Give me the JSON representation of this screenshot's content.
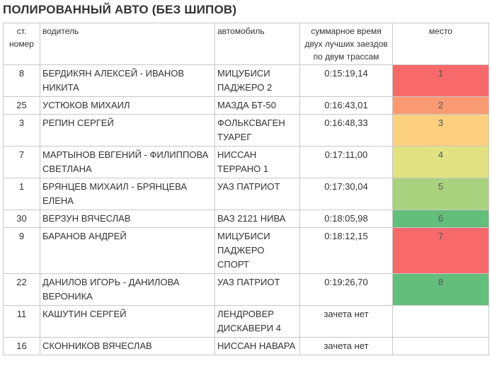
{
  "title": "ПОЛИРОВАННЫЙ АВТО (БЕЗ ШИПОВ)",
  "headers": {
    "number": "ст. номер",
    "driver": "водитель",
    "car": "автомобиль",
    "time": "суммарное время двух лучших заездов по двум трассам",
    "place": "место"
  },
  "rows": [
    {
      "number": "8",
      "driver": "БЕРДИКЯН АЛЕКСЕЙ - ИВАНОВ НИКИТА",
      "car": "МИЦУБИСИ ПАДЖЕРО 2",
      "time": "0:15:19,14",
      "place": "1",
      "color": "#f8696b"
    },
    {
      "number": "25",
      "driver": "УСТЮКОВ МИХАИЛ",
      "car": "МАЗДА БТ-50",
      "time": "0:16:43,01",
      "place": "2",
      "color": "#fa9a73"
    },
    {
      "number": "3",
      "driver": "РЕПИН СЕРГЕЙ",
      "car": "ФОЛЬКСВАГЕН ТУАРЕГ",
      "time": "0:16:48,33",
      "place": "3",
      "color": "#fdd07f"
    },
    {
      "number": "7",
      "driver": "МАРТЫНОВ ЕВГЕНИЙ - ФИЛИППОВА СВЕТЛАНА",
      "car": "НИССАН ТЕРРАНО 1",
      "time": "0:17:11,00",
      "place": "4",
      "color": "#e1e383"
    },
    {
      "number": "1",
      "driver": "БРЯНЦЕВ МИХАИЛ - БРЯНЦЕВА ЕЛЕНА",
      "car": "УАЗ ПАТРИОТ",
      "time": "0:17:30,04",
      "place": "5",
      "color": "#a9d27f"
    },
    {
      "number": "30",
      "driver": "ВЕРЗУН ВЯЧЕСЛАВ",
      "car": "ВАЗ 2121 НИВА",
      "time": "0:18:05,98",
      "place": "6",
      "color": "#63be7b"
    },
    {
      "number": "9",
      "driver": "БАРАНОВ АНДРЕЙ",
      "car": "МИЦУБИСИ ПАДЖЕРО СПОРТ",
      "time": "0:18:12,15",
      "place": "7",
      "color": "#f8696b"
    },
    {
      "number": "22",
      "driver": "ДАНИЛОВ ИГОРЬ - ДАНИЛОВА ВЕРОНИКА",
      "car": "УАЗ ПАТРИОТ",
      "time": "0:19:26,70",
      "place": "8",
      "color": "#63be7b"
    },
    {
      "number": "11",
      "driver": "КАШУТИН СЕРГЕЙ",
      "car": "ЛЕНДРОВЕР ДИСКАВЕРИ 4",
      "time": "зачета нет",
      "place": "",
      "color": "#ffffff"
    },
    {
      "number": "16",
      "driver": "СКОННИКОВ ВЯЧЕСЛАВ",
      "car": "НИССАН НАВАРА",
      "time": "зачета нет",
      "place": "",
      "color": "#ffffff"
    }
  ]
}
